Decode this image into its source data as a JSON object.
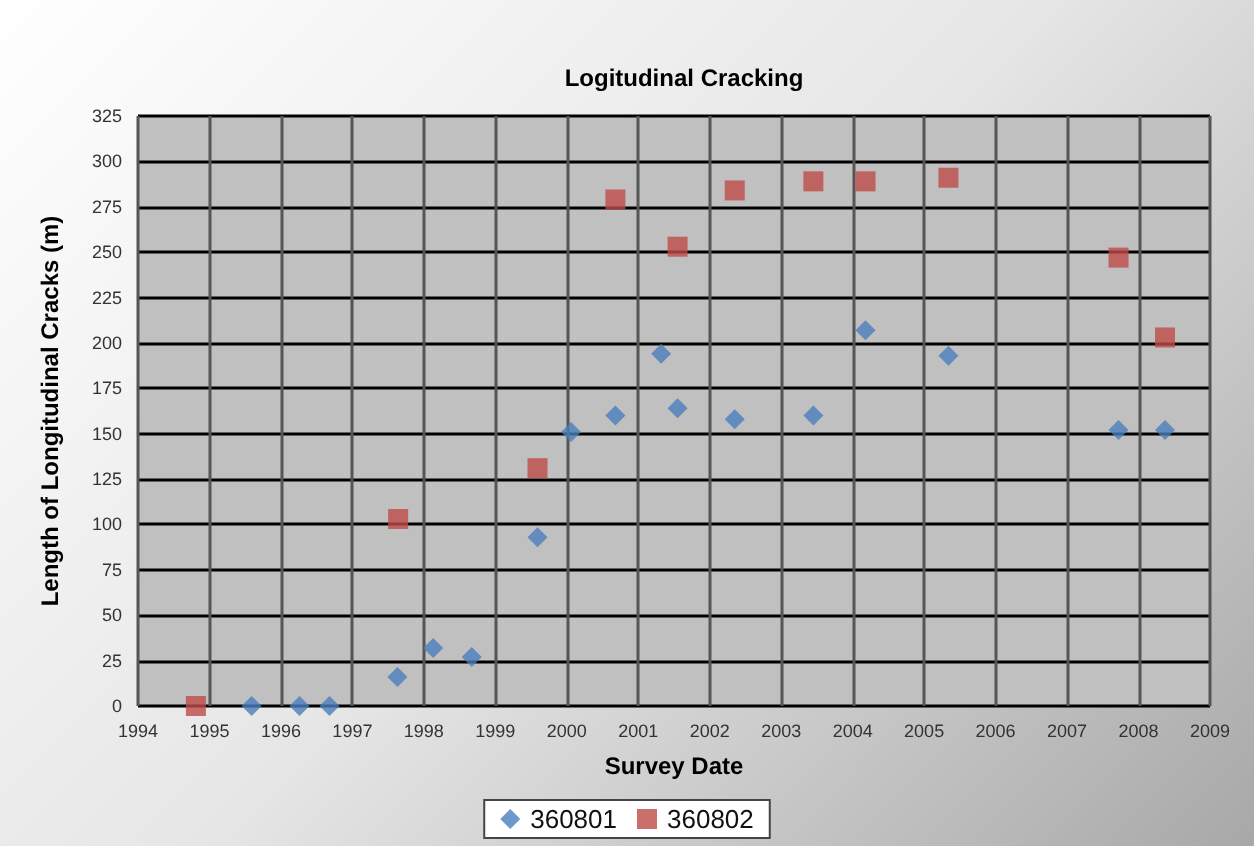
{
  "chart_data": {
    "type": "scatter",
    "title": "Logitudinal Cracking",
    "xlabel": "Survey Date",
    "ylabel": "Length of Longitudinal Cracks (m)",
    "xlim": [
      1994,
      2009
    ],
    "xticks": [
      1994,
      1995,
      1996,
      1997,
      1998,
      1999,
      2000,
      2001,
      2002,
      2003,
      2004,
      2005,
      2006,
      2007,
      2008,
      2009
    ],
    "ylim": [
      0,
      325
    ],
    "yticks": [
      0,
      25,
      50,
      75,
      100,
      125,
      150,
      175,
      200,
      225,
      250,
      275,
      300,
      325
    ],
    "grid": true,
    "legend": "bottom",
    "series": [
      {
        "name": "360801",
        "color": "#4a7ebb",
        "marker": "diamond",
        "x": [
          1995.59,
          1996.26,
          1996.68,
          1997.63,
          1998.13,
          1998.67,
          1999.59,
          2000.06,
          2000.68,
          2001.32,
          2001.55,
          2002.35,
          2003.45,
          2004.18,
          2005.34,
          2007.72,
          2008.37
        ],
        "values": [
          0,
          0,
          0,
          16,
          32,
          27,
          93,
          151,
          160,
          194,
          164,
          158,
          160,
          207,
          193,
          152,
          152
        ]
      },
      {
        "name": "360802",
        "color": "#be4b48",
        "marker": "square",
        "x": [
          1994.81,
          1997.64,
          1999.59,
          2000.68,
          2001.55,
          2002.35,
          2003.45,
          2004.18,
          2005.34,
          2007.72,
          2008.37
        ],
        "values": [
          0,
          103,
          131,
          279,
          253,
          284,
          289,
          289,
          291,
          247,
          203
        ]
      }
    ]
  }
}
